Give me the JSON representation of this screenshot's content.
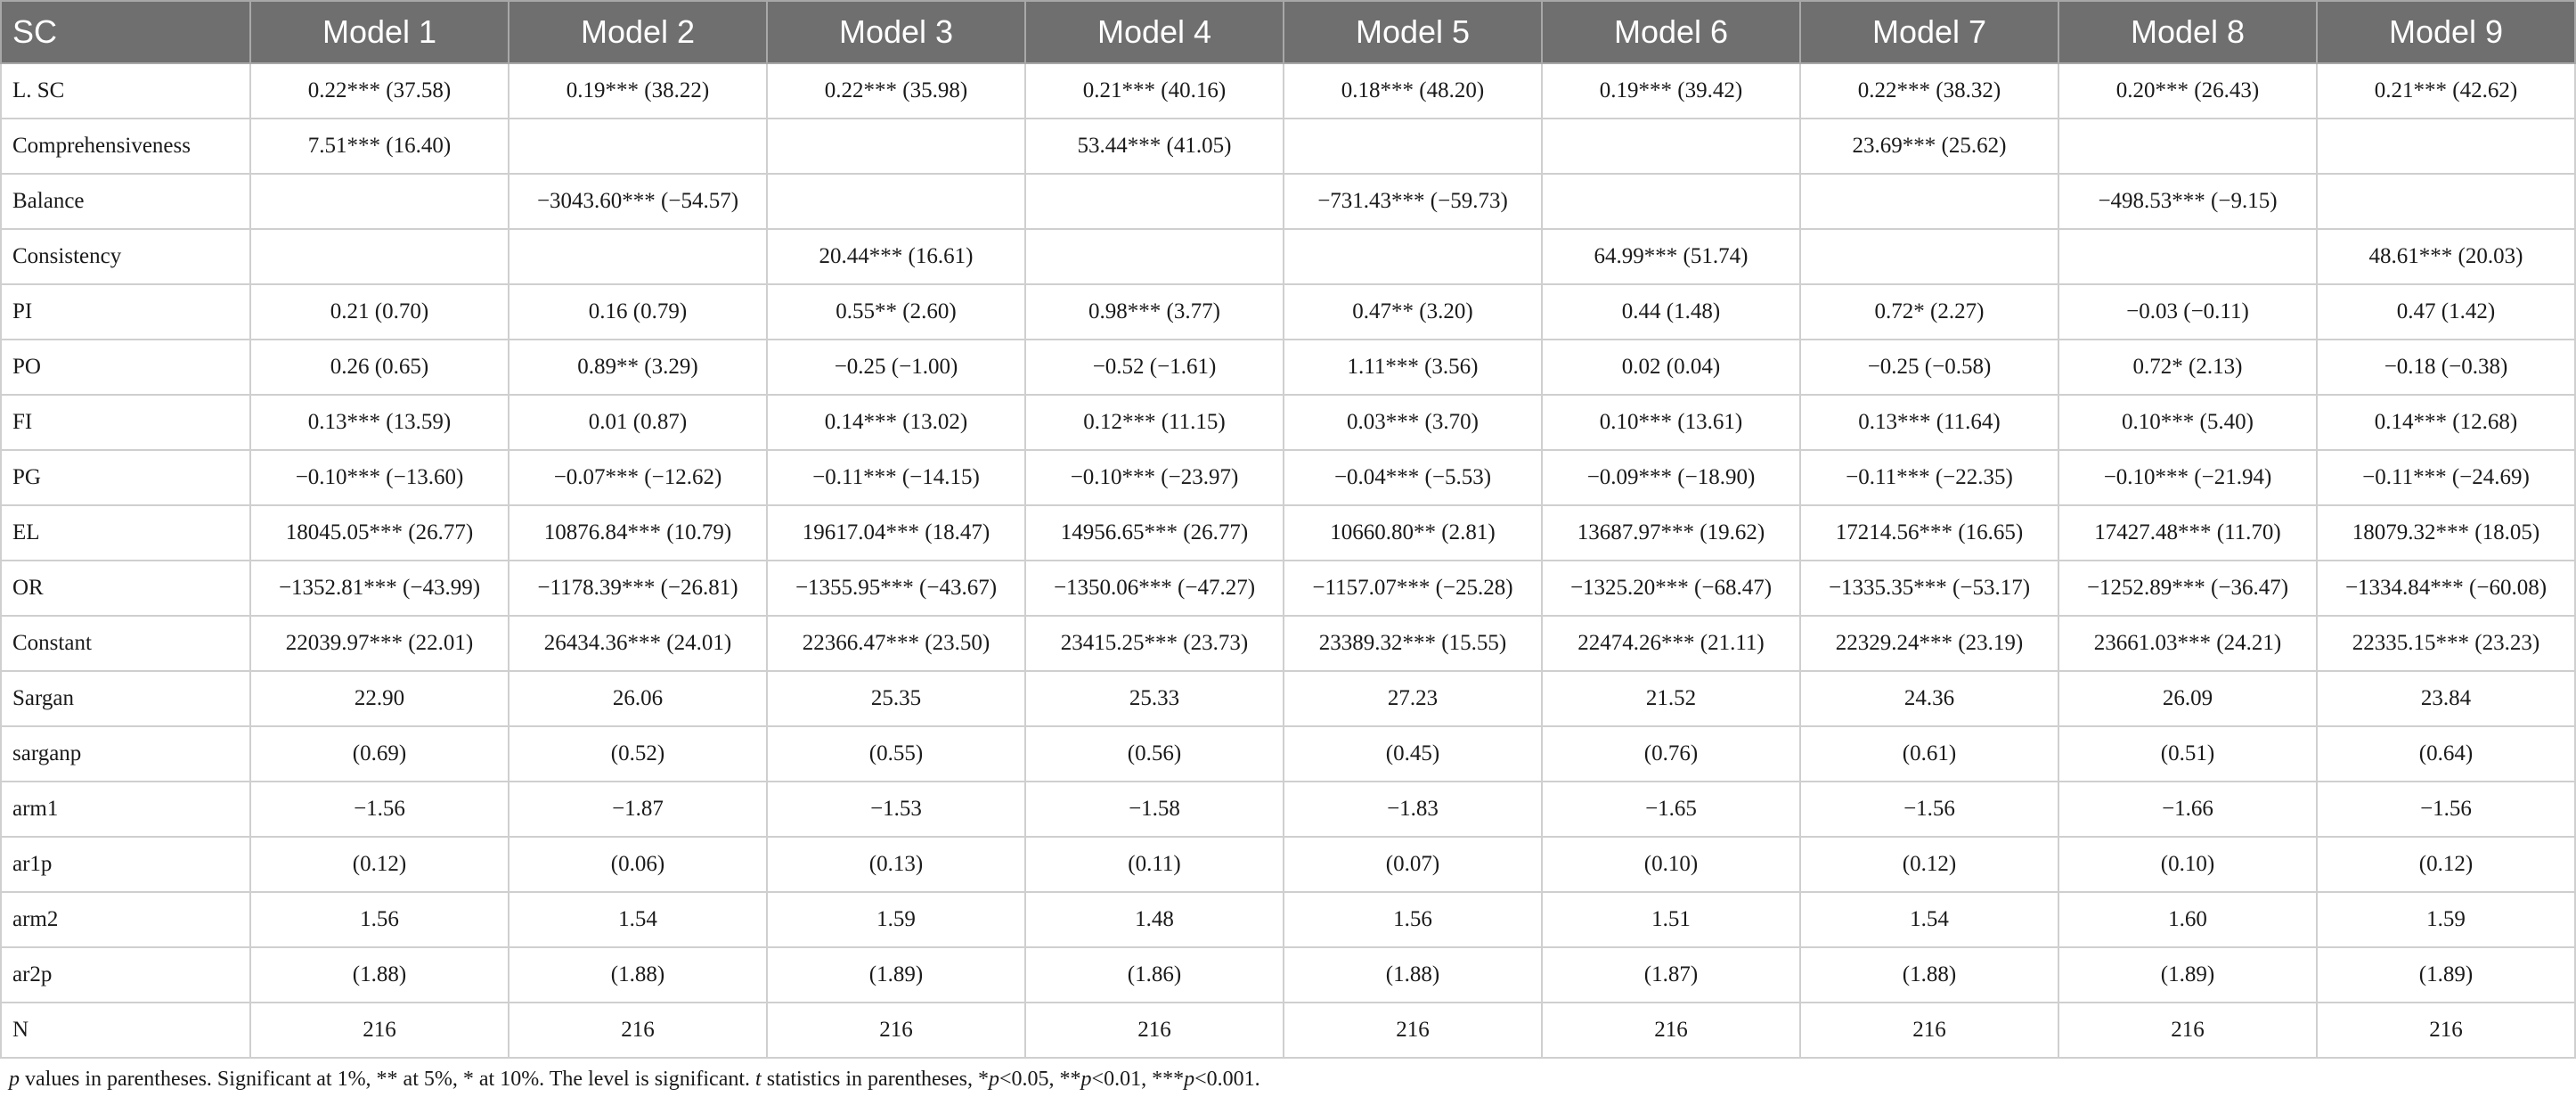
{
  "table": {
    "headers": [
      "SC",
      "Model 1",
      "Model 2",
      "Model 3",
      "Model 4",
      "Model 5",
      "Model 6",
      "Model 7",
      "Model 8",
      "Model 9"
    ],
    "rows": [
      {
        "label": "L. SC",
        "cells": [
          "0.22*** (37.58)",
          "0.19*** (38.22)",
          "0.22*** (35.98)",
          "0.21*** (40.16)",
          "0.18*** (48.20)",
          "0.19*** (39.42)",
          "0.22*** (38.32)",
          "0.20*** (26.43)",
          "0.21*** (42.62)"
        ]
      },
      {
        "label": "Comprehensiveness",
        "cells": [
          "7.51*** (16.40)",
          "",
          "",
          "53.44*** (41.05)",
          "",
          "",
          "23.69*** (25.62)",
          "",
          ""
        ]
      },
      {
        "label": "Balance",
        "cells": [
          "",
          "−3043.60*** (−54.57)",
          "",
          "",
          "−731.43*** (−59.73)",
          "",
          "",
          "−498.53*** (−9.15)",
          ""
        ]
      },
      {
        "label": "Consistency",
        "cells": [
          "",
          "",
          "20.44*** (16.61)",
          "",
          "",
          "64.99*** (51.74)",
          "",
          "",
          "48.61*** (20.03)"
        ]
      },
      {
        "label": "PI",
        "cells": [
          "0.21 (0.70)",
          "0.16 (0.79)",
          "0.55** (2.60)",
          "0.98*** (3.77)",
          "0.47** (3.20)",
          "0.44 (1.48)",
          "0.72* (2.27)",
          "−0.03 (−0.11)",
          "0.47 (1.42)"
        ]
      },
      {
        "label": "PO",
        "cells": [
          "0.26 (0.65)",
          "0.89** (3.29)",
          "−0.25 (−1.00)",
          "−0.52 (−1.61)",
          "1.11*** (3.56)",
          "0.02 (0.04)",
          "−0.25 (−0.58)",
          "0.72* (2.13)",
          "−0.18 (−0.38)"
        ]
      },
      {
        "label": "FI",
        "cells": [
          "0.13*** (13.59)",
          "0.01 (0.87)",
          "0.14*** (13.02)",
          "0.12*** (11.15)",
          "0.03*** (3.70)",
          "0.10*** (13.61)",
          "0.13*** (11.64)",
          "0.10*** (5.40)",
          "0.14*** (12.68)"
        ]
      },
      {
        "label": "PG",
        "cells": [
          "−0.10*** (−13.60)",
          "−0.07*** (−12.62)",
          "−0.11*** (−14.15)",
          "−0.10*** (−23.97)",
          "−0.04*** (−5.53)",
          "−0.09*** (−18.90)",
          "−0.11*** (−22.35)",
          "−0.10*** (−21.94)",
          "−0.11*** (−24.69)"
        ]
      },
      {
        "label": "EL",
        "cells": [
          "18045.05*** (26.77)",
          "10876.84*** (10.79)",
          "19617.04*** (18.47)",
          "14956.65*** (26.77)",
          "10660.80** (2.81)",
          "13687.97*** (19.62)",
          "17214.56*** (16.65)",
          "17427.48*** (11.70)",
          "18079.32*** (18.05)"
        ]
      },
      {
        "label": "OR",
        "cells": [
          "−1352.81*** (−43.99)",
          "−1178.39*** (−26.81)",
          "−1355.95*** (−43.67)",
          "−1350.06*** (−47.27)",
          "−1157.07*** (−25.28)",
          "−1325.20*** (−68.47)",
          "−1335.35*** (−53.17)",
          "−1252.89*** (−36.47)",
          "−1334.84*** (−60.08)"
        ]
      },
      {
        "label": "Constant",
        "cells": [
          "22039.97*** (22.01)",
          "26434.36*** (24.01)",
          "22366.47*** (23.50)",
          "23415.25*** (23.73)",
          "23389.32*** (15.55)",
          "22474.26*** (21.11)",
          "22329.24*** (23.19)",
          "23661.03*** (24.21)",
          "22335.15*** (23.23)"
        ]
      },
      {
        "label": "Sargan",
        "cells": [
          "22.90",
          "26.06",
          "25.35",
          "25.33",
          "27.23",
          "21.52",
          "24.36",
          "26.09",
          "23.84"
        ]
      },
      {
        "label": "sarganp",
        "cells": [
          "(0.69)",
          "(0.52)",
          "(0.55)",
          "(0.56)",
          "(0.45)",
          "(0.76)",
          "(0.61)",
          "(0.51)",
          "(0.64)"
        ]
      },
      {
        "label": "arm1",
        "cells": [
          "−1.56",
          "−1.87",
          "−1.53",
          "−1.58",
          "−1.83",
          "−1.65",
          "−1.56",
          "−1.66",
          "−1.56"
        ]
      },
      {
        "label": "ar1p",
        "cells": [
          "(0.12)",
          "(0.06)",
          "(0.13)",
          "(0.11)",
          "(0.07)",
          "(0.10)",
          "(0.12)",
          "(0.10)",
          "(0.12)"
        ]
      },
      {
        "label": "arm2",
        "cells": [
          "1.56",
          "1.54",
          "1.59",
          "1.48",
          "1.56",
          "1.51",
          "1.54",
          "1.60",
          "1.59"
        ]
      },
      {
        "label": "ar2p",
        "cells": [
          "(1.88)",
          "(1.88)",
          "(1.89)",
          "(1.86)",
          "(1.88)",
          "(1.87)",
          "(1.88)",
          "(1.89)",
          "(1.89)"
        ]
      },
      {
        "label": "N",
        "cells": [
          "216",
          "216",
          "216",
          "216",
          "216",
          "216",
          "216",
          "216",
          "216"
        ]
      }
    ]
  },
  "footnote": {
    "p1": "p",
    "p2": " values in parentheses. Significant at 1%, ** at 5%, * at 10%. The level is significant. ",
    "p3": "t",
    "p4": " statistics in parentheses, *",
    "p5": "p",
    "p6": "<0.05, **",
    "p7": "p",
    "p8": "<0.01, ***",
    "p9": "p",
    "p10": "<0.001."
  },
  "colors": {
    "header_bg": "#6f6f6f",
    "header_text": "#ffffff",
    "grid": "#cfcfcf"
  }
}
